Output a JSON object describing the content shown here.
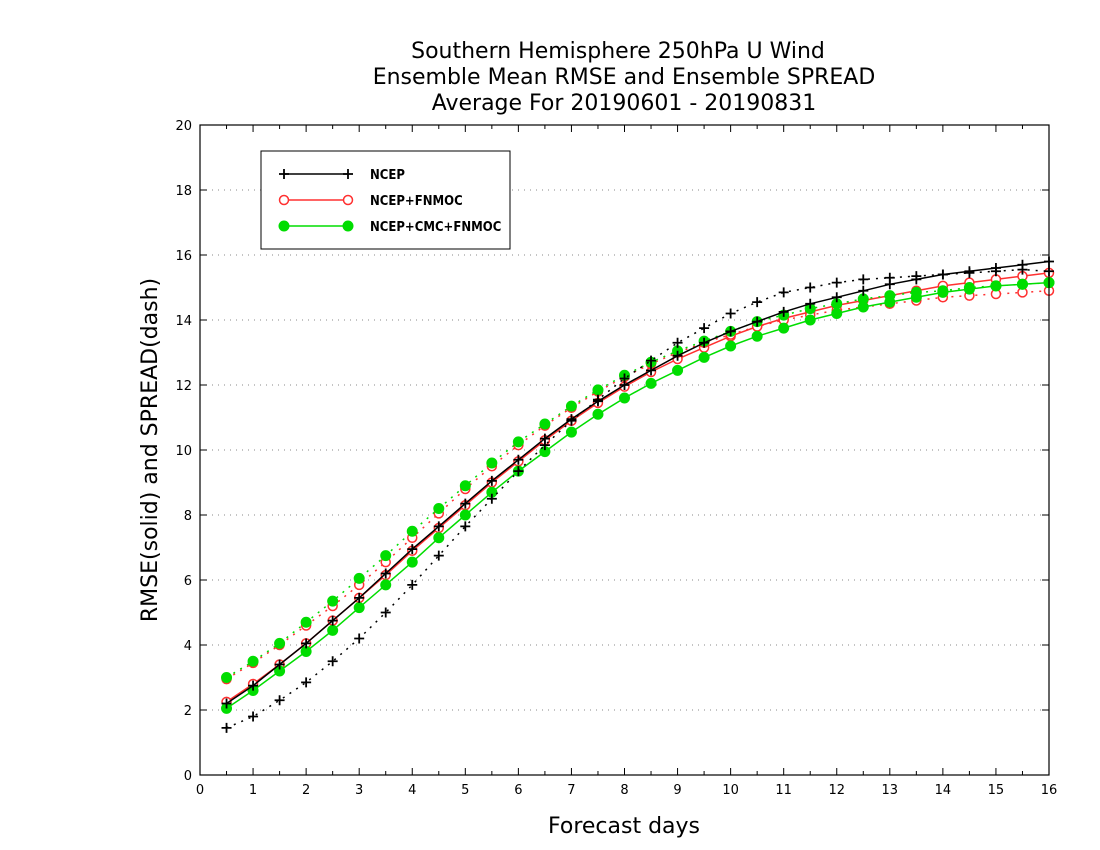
{
  "chart_data": {
    "type": "line",
    "title_lines": [
      "Southern Hemisphere 250hPa U Wind",
      "Ensemble Mean RMSE and Ensemble SPREAD",
      "Average For 20190601 - 20190831"
    ],
    "xlabel": "Forecast days",
    "ylabel": "RMSE(solid) and SPREAD(dash)",
    "xlim": [
      0,
      16
    ],
    "ylim": [
      0,
      20
    ],
    "xticks": [
      "0",
      "1",
      "2",
      "3",
      "4",
      "5",
      "6",
      "7",
      "8",
      "9",
      "10",
      "11",
      "12",
      "13",
      "14",
      "15",
      "16"
    ],
    "yticks": [
      "0",
      "2",
      "4",
      "6",
      "8",
      "10",
      "12",
      "14",
      "16",
      "18",
      "20"
    ],
    "grid": "dotted",
    "legend_position": "top-left",
    "x": [
      0.5,
      1,
      1.5,
      2,
      2.5,
      3,
      3.5,
      4,
      4.5,
      5,
      5.5,
      6,
      6.5,
      7,
      7.5,
      8,
      8.5,
      9,
      9.5,
      10,
      10.5,
      11,
      11.5,
      12,
      12.5,
      13,
      13.5,
      14,
      14.5,
      15,
      15.5,
      16
    ],
    "series": [
      {
        "name": "NCEP",
        "color": "#000000",
        "marker": "plus",
        "rmse": [
          2.2,
          2.75,
          3.4,
          4.05,
          4.75,
          5.45,
          6.2,
          6.95,
          7.65,
          8.35,
          9.05,
          9.7,
          10.35,
          10.95,
          11.5,
          12.0,
          12.45,
          12.9,
          13.3,
          13.65,
          13.95,
          14.25,
          14.5,
          14.7,
          14.9,
          15.1,
          15.25,
          15.4,
          15.5,
          15.6,
          15.7,
          15.8
        ],
        "spread": [
          1.45,
          1.8,
          2.3,
          2.85,
          3.5,
          4.2,
          5.0,
          5.85,
          6.75,
          7.65,
          8.5,
          9.35,
          10.15,
          10.9,
          11.55,
          12.2,
          12.75,
          13.3,
          13.75,
          14.2,
          14.55,
          14.85,
          15.0,
          15.15,
          15.25,
          15.3,
          15.35,
          15.4,
          15.45,
          15.5,
          15.55,
          15.5
        ]
      },
      {
        "name": "NCEP+FNMOC",
        "color": "#ff3030",
        "marker": "open-circle",
        "rmse": [
          2.25,
          2.8,
          3.4,
          4.05,
          4.75,
          5.45,
          6.15,
          6.9,
          7.6,
          8.3,
          9.0,
          9.65,
          10.3,
          10.9,
          11.45,
          11.95,
          12.4,
          12.8,
          13.15,
          13.5,
          13.8,
          14.05,
          14.25,
          14.45,
          14.6,
          14.75,
          14.9,
          15.05,
          15.15,
          15.25,
          15.35,
          15.45
        ],
        "spread": [
          2.95,
          3.45,
          4.0,
          4.6,
          5.2,
          5.85,
          6.55,
          7.3,
          8.05,
          8.8,
          9.5,
          10.15,
          10.75,
          11.3,
          11.8,
          12.25,
          12.65,
          13.0,
          13.3,
          13.55,
          13.8,
          14.0,
          14.15,
          14.3,
          14.4,
          14.5,
          14.6,
          14.7,
          14.75,
          14.8,
          14.85,
          14.9
        ]
      },
      {
        "name": "NCEP+CMC+FNMOC",
        "color": "#00dd00",
        "marker": "filled-circle",
        "rmse": [
          2.05,
          2.6,
          3.2,
          3.8,
          4.45,
          5.15,
          5.85,
          6.55,
          7.3,
          8.0,
          8.7,
          9.35,
          9.95,
          10.55,
          11.1,
          11.6,
          12.05,
          12.45,
          12.85,
          13.2,
          13.5,
          13.75,
          14.0,
          14.2,
          14.4,
          14.55,
          14.7,
          14.85,
          14.95,
          15.05,
          15.1,
          15.15
        ],
        "spread": [
          3.0,
          3.5,
          4.05,
          4.7,
          5.35,
          6.05,
          6.75,
          7.5,
          8.2,
          8.9,
          9.6,
          10.25,
          10.8,
          11.35,
          11.85,
          12.3,
          12.7,
          13.05,
          13.35,
          13.65,
          13.95,
          14.15,
          14.35,
          14.5,
          14.65,
          14.75,
          14.85,
          14.9,
          15.0,
          15.05,
          15.1,
          15.15
        ]
      }
    ]
  }
}
